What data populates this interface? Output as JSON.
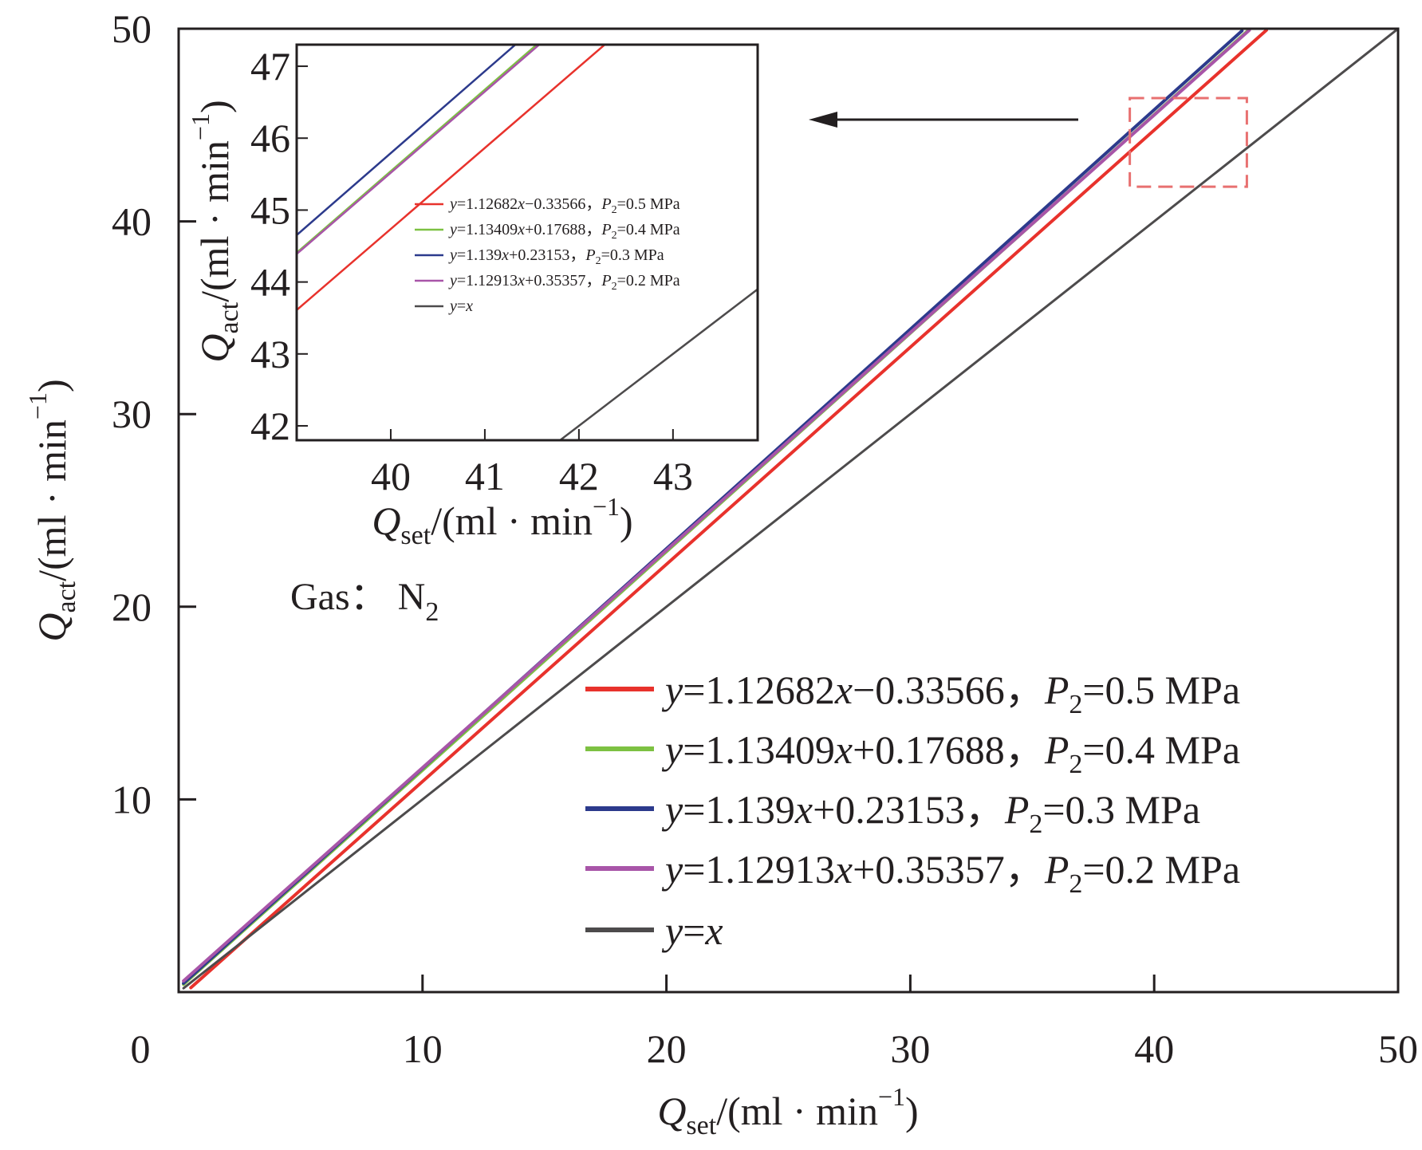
{
  "chart_data": [
    {
      "id": "main",
      "type": "line",
      "xlabel": {
        "var": "Q",
        "sub": "set",
        "unit": "/(ml · min",
        "sup": "−1",
        "close": ")"
      },
      "ylabel": {
        "var": "Q",
        "sub": "act",
        "unit": "/(ml · min",
        "sup": "−1",
        "close": ")"
      },
      "xlim": [
        0,
        50
      ],
      "ylim": [
        0,
        50
      ],
      "xticks": [
        0,
        10,
        20,
        30,
        40,
        50
      ],
      "yticks": [
        10,
        20,
        30,
        40,
        50
      ],
      "grid": false,
      "legend_position": "bottom-right",
      "annotation": {
        "text": "Gas：",
        "formula": "N",
        "sub": "2"
      },
      "series": [
        {
          "name": "y=1.12682x−0.33566，P2=0.5 MPa",
          "label": {
            "a": "y",
            "b": "=1.12682",
            "c": "x",
            "d": "−0.33566，",
            "e": "P",
            "f": "2",
            "g": "=0.5 MPa"
          },
          "slope": 1.12682,
          "intercept": -0.33566,
          "x_range": [
            0.5,
            44.6
          ],
          "color": "#e8322c"
        },
        {
          "name": "y=1.13409x+0.17688，P2=0.4 MPa",
          "label": {
            "a": "y",
            "b": "=1.13409",
            "c": "x",
            "d": "+0.17688，",
            "e": "P",
            "f": "2",
            "g": "=0.4 MPa"
          },
          "slope": 1.13409,
          "intercept": 0.17688,
          "x_range": [
            0.2,
            43.9
          ],
          "color": "#7dc142"
        },
        {
          "name": "y=1.139x+0.23153，P2=0.3 MPa",
          "label": {
            "a": "y",
            "b": "=1.139",
            "c": "x",
            "d": "+0.23153，",
            "e": "P",
            "f": "2",
            "g": "=0.3 MPa"
          },
          "slope": 1.139,
          "intercept": 0.23153,
          "x_range": [
            0.2,
            43.6
          ],
          "color": "#2c3a8c"
        },
        {
          "name": "y=1.12913x+0.35357，P2=0.2 MPa",
          "label": {
            "a": "y",
            "b": "=1.12913",
            "c": "x",
            "d": "+0.35357，",
            "e": "P",
            "f": "2",
            "g": "=0.2 MPa"
          },
          "slope": 1.12913,
          "intercept": 0.35357,
          "x_range": [
            0.2,
            43.9
          ],
          "color": "#a855a8"
        },
        {
          "name": "y=x",
          "label": {
            "a": "y",
            "b": "=",
            "c": "x",
            "d": "",
            "e": "",
            "f": "",
            "g": ""
          },
          "slope": 1.0,
          "intercept": 0.0,
          "x_range": [
            0.2,
            49.9
          ],
          "color": "#4d4b4c"
        }
      ],
      "highlight_box": {
        "x": [
          39.0,
          43.8
        ],
        "y": [
          41.8,
          46.4
        ],
        "color": "#e87070"
      }
    },
    {
      "id": "inset",
      "type": "line",
      "xlabel": {
        "var": "Q",
        "sub": "set",
        "unit": "/(ml · min",
        "sup": "−1",
        "close": ")"
      },
      "ylabel": {
        "var": "Q",
        "sub": "act",
        "unit": "/(ml · min",
        "sup": "−1",
        "close": ")"
      },
      "xlim": [
        39.0,
        43.9
      ],
      "ylim": [
        41.8,
        47.3
      ],
      "xticks": [
        40,
        41,
        42,
        43
      ],
      "yticks": [
        42,
        43,
        44,
        45,
        46,
        47
      ],
      "grid": false,
      "legend_position": "center-right"
    }
  ]
}
